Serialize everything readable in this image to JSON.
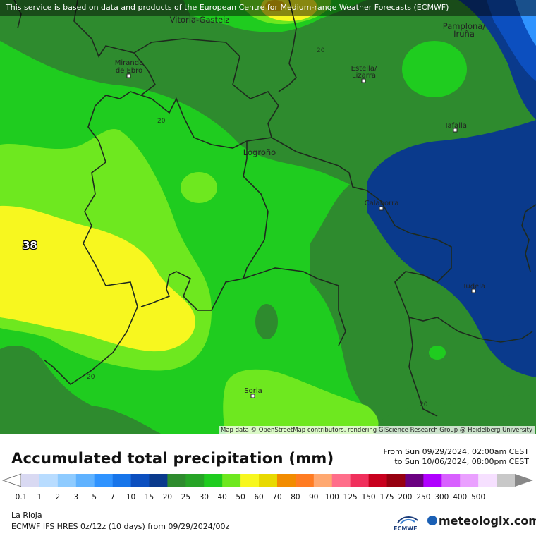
{
  "banner_text": "This service is based on data and products of the European Centre for Medium-range Weather Forecasts (ECMWF)",
  "attribution": "Map data © OpenStreetMap contributors, rendering GIScience Research Group @ Heidelberg University",
  "title": "Accumulated total precipitation (mm)",
  "date_from": "From Sun 09/29/2024, 02:00am CEST",
  "date_to": "to Sun 10/06/2024, 08:00pm CEST",
  "region": "La Rioja",
  "model_run": "ECMWF IFS HRES 0z/12z (10 days) from 09/29/2024/00z",
  "ecmwf_label": "ECMWF",
  "brand": "meteologix.com",
  "cities": {
    "vitoria": "Vitoria-Gasteiz",
    "pamplona_1": "Pamplona/",
    "pamplona_2": "Iruña",
    "miranda_1": "Miranda",
    "miranda_2": "de Ebro",
    "estella_1": "Estella/",
    "estella_2": "Lizarra",
    "tafalla": "Tafalla",
    "logrono": "Logroño",
    "calahorra": "Calahorra",
    "tudela": "Tudela",
    "soria": "Soria"
  },
  "contour_labels": {
    "c1": "20",
    "c2": "20",
    "c3": "20",
    "c4": "20"
  },
  "max_value": "38",
  "legend": {
    "labels": [
      "0.1",
      "1",
      "2",
      "3",
      "5",
      "7",
      "10",
      "15",
      "20",
      "25",
      "30",
      "40",
      "50",
      "60",
      "70",
      "80",
      "90",
      "100",
      "125",
      "150",
      "175",
      "200",
      "250",
      "300",
      "400",
      "500"
    ],
    "colors": [
      "#d9d9f2",
      "#b8dcff",
      "#8ecbff",
      "#5fb2ff",
      "#2f93ff",
      "#1775ea",
      "#0c4fbf",
      "#0a3a8c",
      "#2e8b2e",
      "#27a427",
      "#1fcc1f",
      "#6ee81f",
      "#f7f71f",
      "#e8d900",
      "#f28c00",
      "#ff7c22",
      "#ffa870",
      "#ff6e8a",
      "#f0305c",
      "#c8001e",
      "#960010",
      "#6a0080",
      "#b000ff",
      "#d860ff",
      "#eaa0ff",
      "#f6e0ff",
      "#c8c8c8"
    ]
  },
  "colors": {
    "dark_green": "#2e8b2e",
    "mid_green": "#1fcc1f",
    "light_green": "#6ee81f",
    "yellow": "#f7f71f",
    "blue_dark": "#0a3a8c",
    "blue_mid": "#0c4fbf",
    "blue_light": "#2f93ff"
  }
}
